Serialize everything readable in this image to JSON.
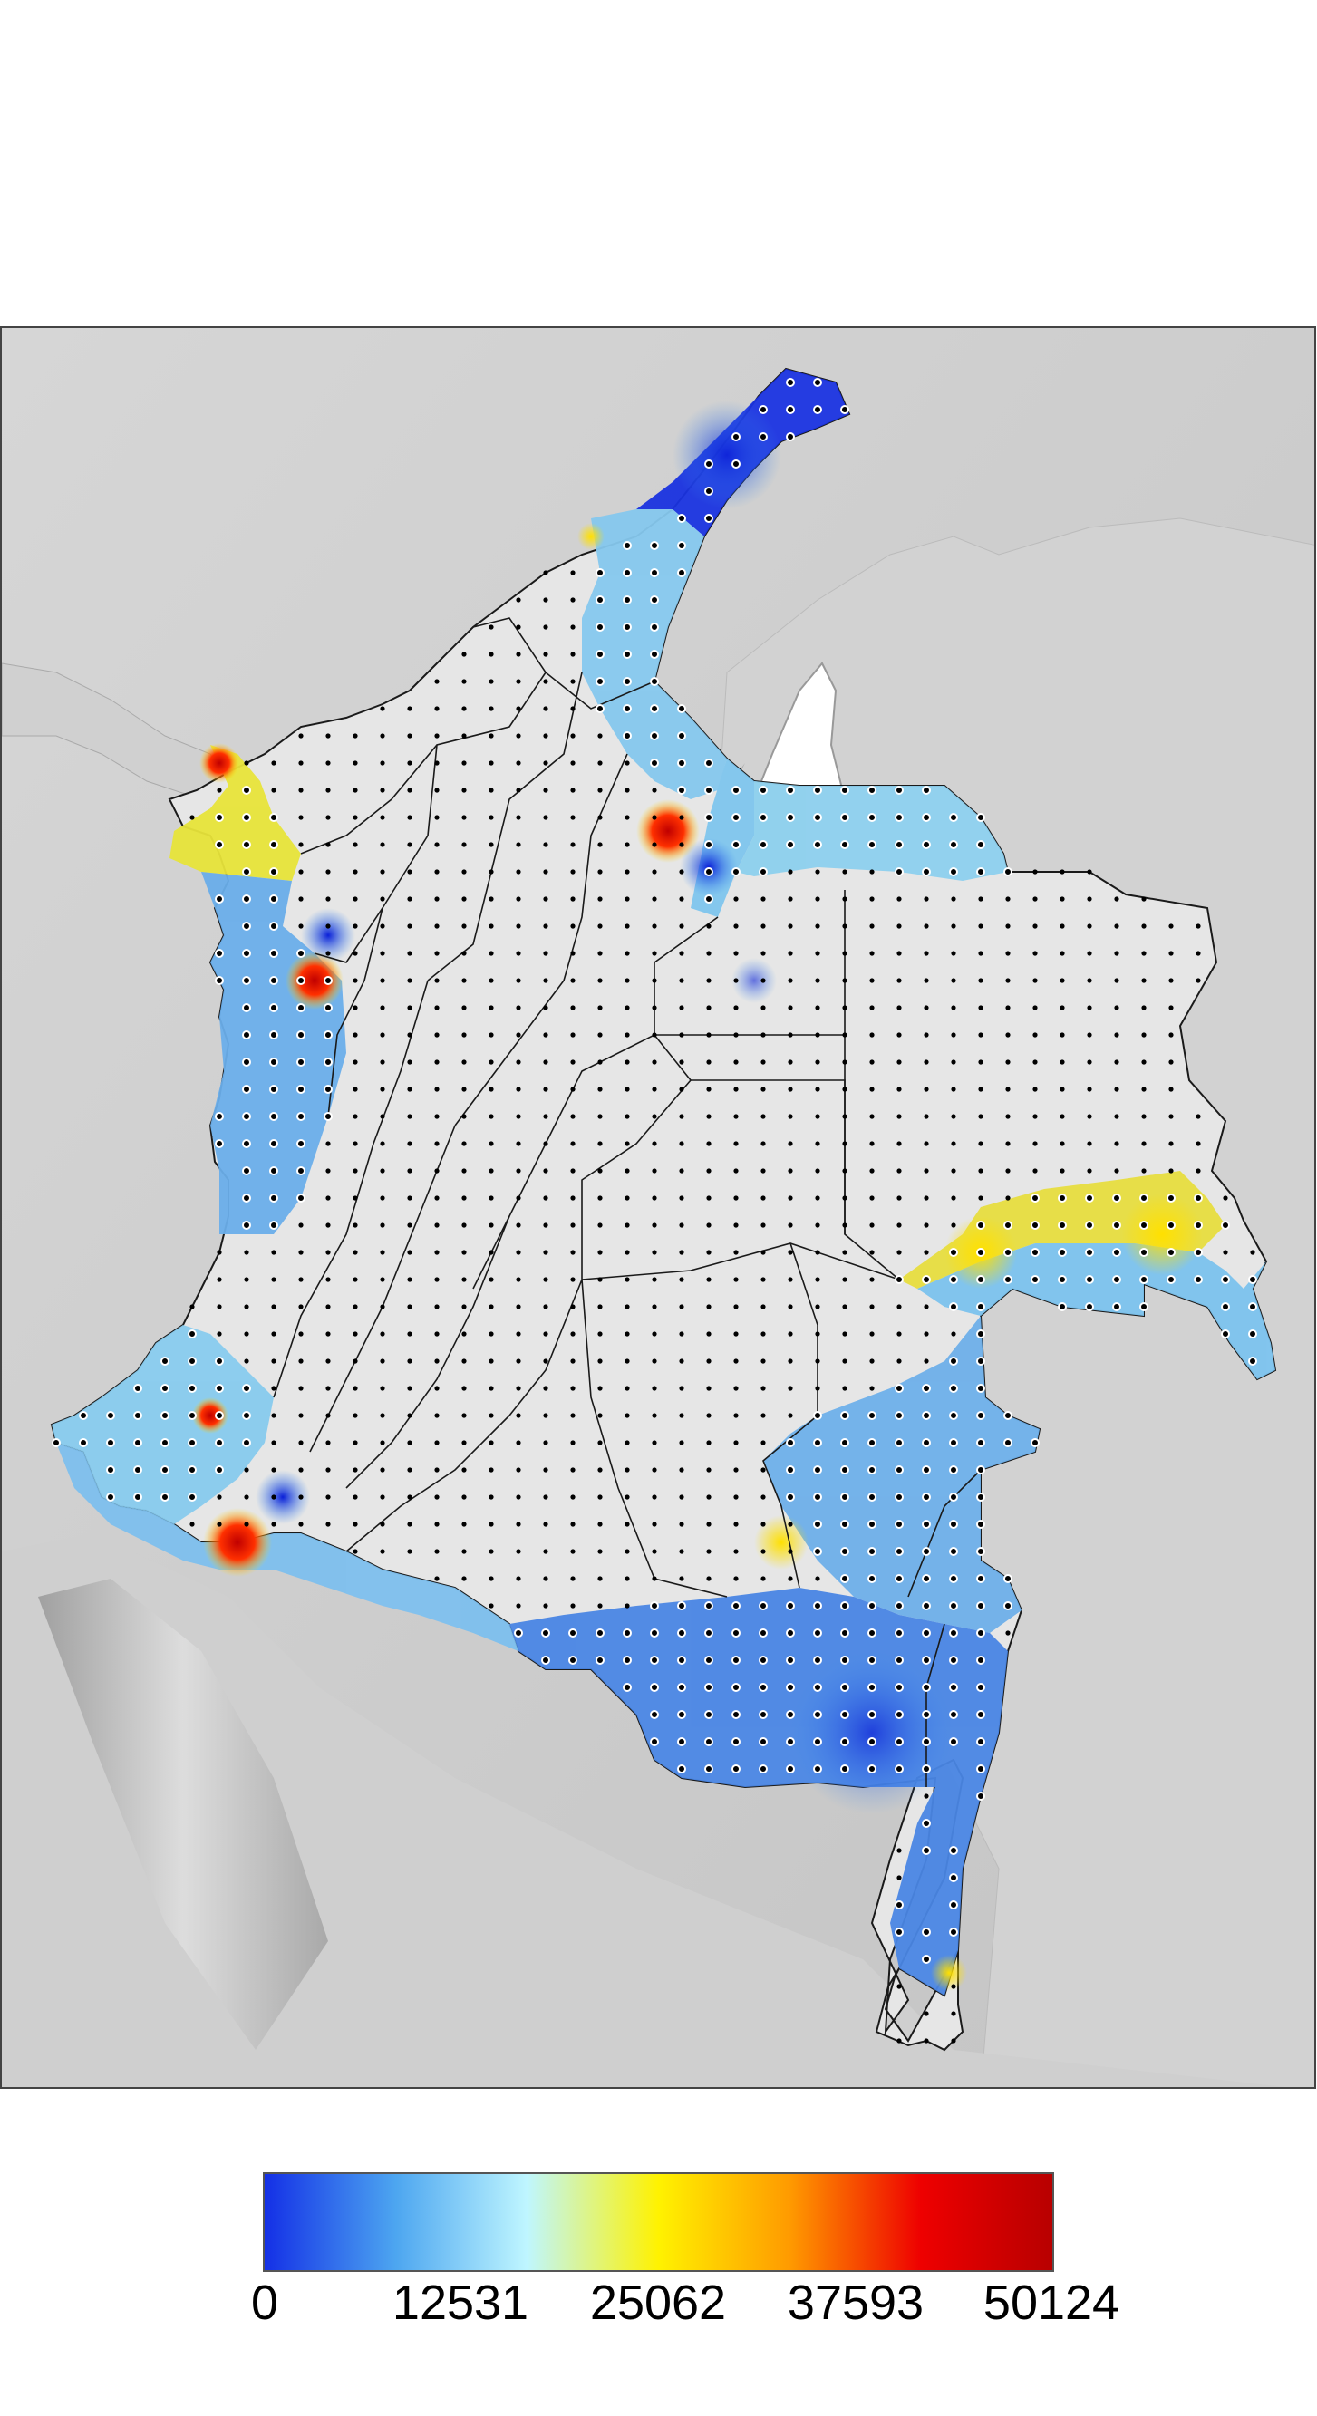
{
  "map": {
    "region": "Colombia",
    "overlay": "interpolated heat layer over shaded relief with municipal borders and sample dots",
    "colors": {
      "relief_dark": "#8c8c8c",
      "relief_mid": "#c8c8c8",
      "relief_light": "#e6e6e6",
      "border": "#1a1a1a",
      "dot": "#000000",
      "dot_ring": "#ffffff"
    }
  },
  "legend": {
    "min": 0,
    "max": 50124,
    "ticks": [
      "0",
      "12531",
      "25062",
      "37593",
      "50124"
    ],
    "stops": [
      "#1430e6",
      "#4da6f0",
      "#bff6ff",
      "#fff200",
      "#ff9a00",
      "#ee0000",
      "#b80000"
    ]
  }
}
